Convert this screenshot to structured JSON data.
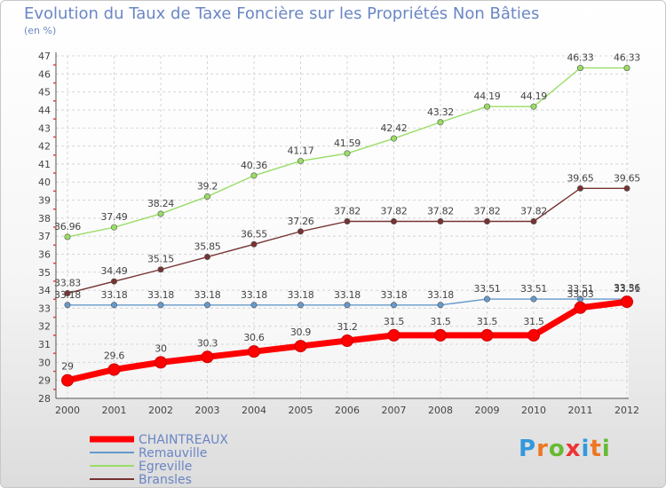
{
  "chart_data": {
    "type": "line",
    "title": "Evolution du Taux de Taxe Foncière sur les Propriétés Non Bâties",
    "unit_label": "(en %)",
    "x": [
      "2000",
      "2001",
      "2002",
      "2003",
      "2004",
      "2005",
      "2006",
      "2007",
      "2008",
      "2009",
      "2010",
      "2011",
      "2012"
    ],
    "ylim": [
      28,
      47
    ],
    "yticks": [
      "28",
      "29",
      "30",
      "31",
      "32",
      "33",
      "34",
      "35",
      "36",
      "37",
      "38",
      "39",
      "40",
      "41",
      "42",
      "43",
      "44",
      "45",
      "46",
      "47"
    ],
    "grid": true,
    "legend_position": "bottom-left",
    "series": [
      {
        "name": "CHAINTREAUX",
        "color": "#ff0000",
        "values": [
          29,
          29.6,
          30,
          30.3,
          30.6,
          30.9,
          31.2,
          31.5,
          31.5,
          31.5,
          31.5,
          33.03,
          33.36
        ],
        "labels": [
          "29",
          "29.6",
          "30",
          "30.3",
          "30.6",
          "30.9",
          "31.2",
          "31.5",
          "31.5",
          "31.5",
          "31.5",
          "33.03",
          "33.36"
        ]
      },
      {
        "name": "Remauville",
        "color": "#6699cc",
        "values": [
          33.18,
          33.18,
          33.18,
          33.18,
          33.18,
          33.18,
          33.18,
          33.18,
          33.18,
          33.51,
          33.51,
          33.51,
          33.51
        ],
        "labels": [
          "33.18",
          "33.18",
          "33.18",
          "33.18",
          "33.18",
          "33.18",
          "33.18",
          "33.18",
          "33.18",
          "33.51",
          "33.51",
          "33.51",
          "33.51"
        ]
      },
      {
        "name": "Egreville",
        "color": "#99dd66",
        "values": [
          36.96,
          37.49,
          38.24,
          39.2,
          40.36,
          41.17,
          41.59,
          42.42,
          43.32,
          44.19,
          44.19,
          46.33,
          46.33
        ],
        "labels": [
          "36.96",
          "37.49",
          "38.24",
          "39.2",
          "40.36",
          "41.17",
          "41.59",
          "42.42",
          "43.32",
          "44.19",
          "44.19",
          "46.33",
          "46.33"
        ]
      },
      {
        "name": "Bransles",
        "color": "#773333",
        "values": [
          33.83,
          34.49,
          35.15,
          35.85,
          36.55,
          37.26,
          37.82,
          37.82,
          37.82,
          37.82,
          37.82,
          39.65,
          39.65
        ],
        "labels": [
          "33.83",
          "34.49",
          "35.15",
          "35.85",
          "36.55",
          "37.26",
          "37.82",
          "37.82",
          "37.82",
          "37.82",
          "37.82",
          "39.65",
          "39.65"
        ]
      }
    ]
  },
  "logo": {
    "letters": [
      "P",
      "r",
      "o",
      "x",
      "i",
      "t",
      "i"
    ],
    "colors": [
      "#3399dd",
      "#ee7722",
      "#66bb33",
      "#ee3333",
      "#3399dd",
      "#ee7722",
      "#66bb33"
    ]
  }
}
